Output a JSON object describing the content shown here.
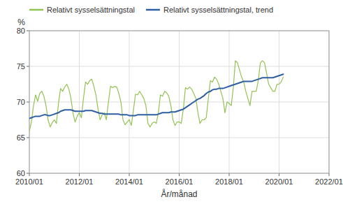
{
  "chart_data": {
    "type": "line",
    "ylabel": "%",
    "xlabel": "År/månad",
    "x": [
      0,
      1,
      2,
      3,
      4,
      5,
      6,
      7,
      8,
      9,
      10,
      11,
      12,
      13,
      14,
      15,
      16,
      17,
      18,
      19,
      20,
      21,
      22,
      23,
      24,
      25,
      26,
      27,
      28,
      29,
      30,
      31,
      32,
      33,
      34,
      35,
      36,
      37,
      38,
      39,
      40,
      41,
      42,
      43,
      44,
      45,
      46,
      47,
      48,
      49,
      50,
      51,
      52,
      53,
      54,
      55,
      56,
      57,
      58,
      59,
      60,
      61,
      62,
      63,
      64,
      65,
      66,
      67,
      68,
      69,
      70,
      71,
      72,
      73,
      74,
      75,
      76,
      77,
      78,
      79,
      80,
      81,
      82,
      83,
      84,
      85,
      86,
      87,
      88,
      89,
      90,
      91,
      92,
      93,
      94,
      95,
      96,
      97,
      98,
      99,
      100,
      101,
      102,
      103,
      104,
      105,
      106,
      107,
      108,
      109,
      110,
      111,
      112,
      113,
      114,
      115,
      116,
      117,
      118,
      119,
      120,
      121,
      122
    ],
    "xlim": [
      0,
      144
    ],
    "xticks": [
      {
        "value": 0,
        "label": "2010/01"
      },
      {
        "value": 24,
        "label": "2012/01"
      },
      {
        "value": 48,
        "label": "2014/01"
      },
      {
        "value": 72,
        "label": "2016/01"
      },
      {
        "value": 96,
        "label": "2018/01"
      },
      {
        "value": 120,
        "label": "2020/01"
      },
      {
        "value": 144,
        "label": "2022/01"
      }
    ],
    "ylim": [
      60,
      80
    ],
    "yticks": [
      60,
      65,
      70,
      75,
      80
    ],
    "grid": true,
    "legend": "top",
    "series": [
      {
        "name": "Relativt sysselsättningstal",
        "color": "#92c353",
        "values": [
          65.9,
          67.2,
          69.5,
          71.0,
          70.1,
          71.2,
          71.5,
          70.8,
          69.5,
          67.5,
          66.5,
          67.1,
          67.5,
          67.0,
          69.8,
          71.9,
          71.5,
          72.1,
          72.5,
          71.8,
          70.5,
          68.4,
          67.2,
          68.0,
          68.5,
          67.8,
          70.5,
          72.8,
          72.5,
          73.0,
          73.2,
          72.2,
          71.0,
          69.0,
          67.5,
          68.2,
          68.5,
          67.5,
          70.0,
          72.2,
          72.0,
          72.2,
          72.1,
          71.2,
          70.0,
          67.5,
          66.8,
          67.2,
          67.5,
          66.7,
          68.8,
          71.1,
          71.0,
          71.5,
          71.0,
          70.5,
          69.5,
          67.0,
          66.5,
          67.0,
          67.2,
          67.0,
          68.5,
          71.0,
          70.8,
          71.5,
          71.3,
          70.8,
          69.5,
          67.5,
          66.7,
          67.2,
          67.2,
          67.0,
          69.0,
          72.0,
          71.8,
          72.1,
          71.8,
          71.2,
          70.5,
          68.5,
          67.0,
          67.5,
          67.5,
          67.8,
          70.5,
          73.0,
          72.8,
          73.5,
          73.2,
          72.5,
          71.5,
          70.5,
          68.5,
          70.0,
          69.8,
          69.5,
          72.0,
          75.8,
          75.5,
          74.5,
          73.5,
          72.8,
          71.5,
          70.5,
          69.5,
          71.5,
          71.5,
          71.5,
          73.0,
          75.5,
          75.8,
          75.5,
          74.0,
          72.5,
          72.0,
          71.5,
          71.5,
          72.5,
          72.5,
          72.8,
          73.5
        ]
      },
      {
        "name": "Relativt sysselsättningstal, trend",
        "color": "#2e5fa3",
        "values": [
          67.7,
          67.8,
          67.9,
          68.0,
          68.0,
          68.0,
          68.1,
          68.2,
          68.2,
          68.1,
          68.1,
          68.2,
          68.3,
          68.4,
          68.5,
          68.7,
          68.8,
          68.9,
          68.9,
          68.9,
          68.9,
          68.8,
          68.7,
          68.7,
          68.7,
          68.7,
          68.7,
          68.8,
          68.8,
          68.8,
          68.8,
          68.7,
          68.6,
          68.5,
          68.4,
          68.4,
          68.3,
          68.3,
          68.3,
          68.3,
          68.3,
          68.3,
          68.3,
          68.3,
          68.2,
          68.2,
          68.2,
          68.2,
          68.1,
          68.1,
          68.1,
          68.1,
          68.2,
          68.2,
          68.2,
          68.2,
          68.2,
          68.2,
          68.2,
          68.2,
          68.2,
          68.2,
          68.3,
          68.4,
          68.5,
          68.5,
          68.5,
          68.5,
          68.6,
          68.6,
          68.6,
          68.7,
          68.8,
          68.9,
          69.0,
          69.2,
          69.4,
          69.6,
          69.8,
          70.0,
          70.2,
          70.4,
          70.5,
          70.7,
          70.9,
          71.2,
          71.4,
          71.5,
          71.7,
          71.8,
          71.8,
          71.9,
          71.9,
          71.9,
          72.0,
          72.1,
          72.2,
          72.3,
          72.4,
          72.5,
          72.6,
          72.7,
          72.8,
          72.9,
          72.9,
          72.9,
          72.9,
          72.9,
          73.0,
          73.1,
          73.2,
          73.3,
          73.4,
          73.4,
          73.4,
          73.4,
          73.4,
          73.4,
          73.5,
          73.6,
          73.7,
          73.8,
          73.9
        ]
      }
    ]
  }
}
